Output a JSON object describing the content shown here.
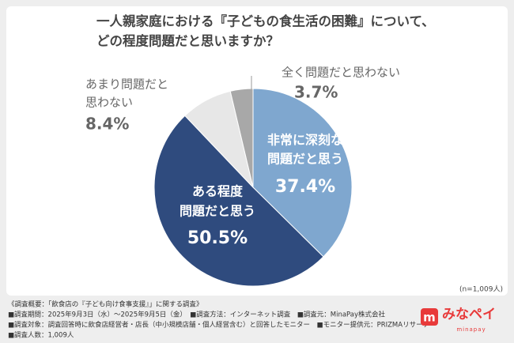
{
  "chart_data": {
    "type": "pie",
    "title": [
      "一人親家庭における『子どもの食生活の困難』について、",
      "どの程度問題だと思いますか？"
    ],
    "categories": [
      [
        "非常に深刻な",
        "問題だと思う"
      ],
      [
        "ある程度",
        "問題だと思う"
      ],
      [
        "あまり問題だと",
        "思わない"
      ],
      [
        "全く問題だと思わない"
      ]
    ],
    "values": [
      37.4,
      50.5,
      8.4,
      3.7
    ],
    "value_labels": [
      "37.4%",
      "50.5%",
      "8.4%",
      "3.7%"
    ],
    "colors": [
      "#7fa7cf",
      "#2f4b7e",
      "#e7e7e7",
      "#a8a8a8"
    ],
    "note": "(n=1,009人)"
  },
  "footer": {
    "lines": [
      "《調査概要：「飲食店の『子ども向け食事支援』」に関する調査》",
      "■調査期間：2025年9月3日（水）～2025年9月5日（金）　■調査方法：インターネット調査　■調査元：MinaPay株式会社",
      "■調査対象：調査回答時に飲食店経営者・店長（中小規模店舗・個人経営含む）と回答したモニター　■モニター提供元：PRIZMAリサーチ",
      "■調査人数：1,009人"
    ],
    "logo": {
      "name": "みなペイ",
      "sub": "minapay"
    }
  }
}
